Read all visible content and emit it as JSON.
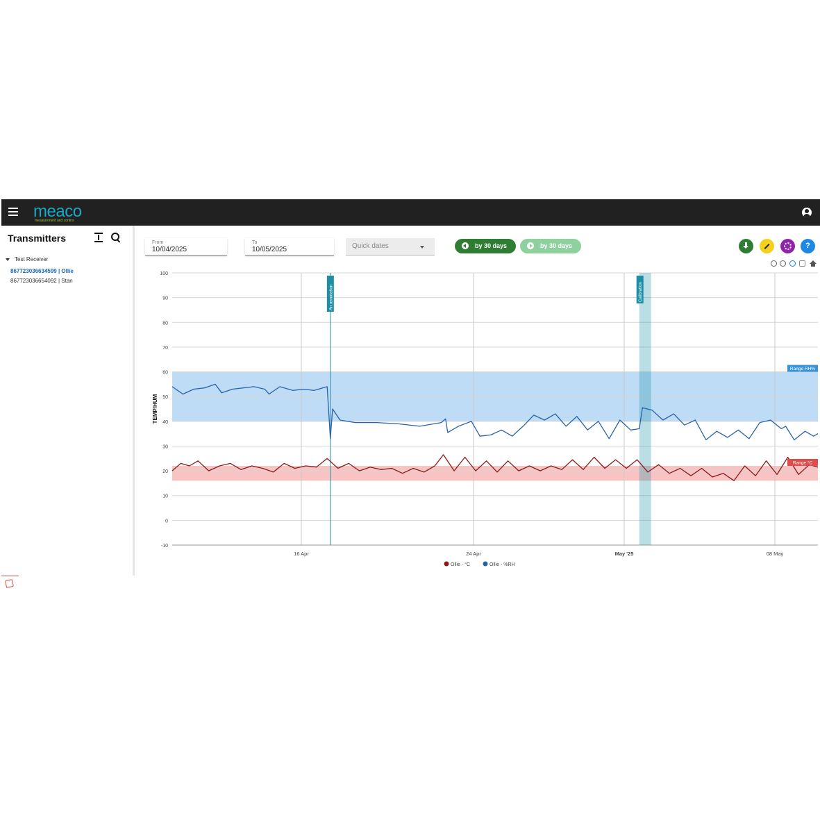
{
  "app": {
    "brand": "meaco",
    "tagline": "measurement and control"
  },
  "icons": {
    "menu": "menu-icon",
    "account": "account-circle-icon",
    "expand": "expand-vertical-icon",
    "search": "search-icon",
    "download": "download-icon",
    "fullscreen": "fullscreen-icon",
    "settings": "gear-icon",
    "help": "help-icon"
  },
  "sidebar": {
    "title": "Transmitters",
    "receiver": "Test Receiver",
    "items": [
      {
        "label": "867723036634599 | Ollie",
        "active": true
      },
      {
        "label": "867723036654092 | Stan",
        "active": false
      }
    ]
  },
  "toolbar": {
    "from_label": "From",
    "from_value": "10/04/2025",
    "to_label": "To",
    "to_value": "10/05/2025",
    "quick_dates_placeholder": "Quick dates",
    "prev_label": "by 30 days",
    "next_label": "by 30 days",
    "help_label": "?"
  },
  "colors": {
    "temp": "#8b1a1a",
    "rh": "#2a62a8",
    "rh_band": "#b3d6f5",
    "temp_band": "#f7b8b8",
    "annotation": "#1e8ea6"
  },
  "chart_data": {
    "type": "line",
    "ylabel": "TEMP/HUM",
    "ylim": [
      -10,
      100
    ],
    "yticks": [
      100,
      90,
      80,
      70,
      60,
      50,
      40,
      30,
      20,
      10,
      0,
      -10
    ],
    "xlim": [
      "2025-04-10",
      "2025-05-10"
    ],
    "xticks": [
      {
        "date": "2025-04-16",
        "label": "16 Apr",
        "bold": false
      },
      {
        "date": "2025-04-24",
        "label": "24 Apr",
        "bold": false
      },
      {
        "date": "2025-05-01",
        "label": "May '25",
        "bold": true
      },
      {
        "date": "2025-05-08",
        "label": "08 May",
        "bold": false
      }
    ],
    "bands": [
      {
        "label": "Range RH%",
        "from": 40,
        "to": 60
      },
      {
        "label": "Range °C",
        "from": 16,
        "to": 22
      }
    ],
    "annotations": [
      {
        "label": "An annotation",
        "date": "2025-04-17.35"
      },
      {
        "label": "Calibration",
        "from": "2025-05-01.7",
        "to": "2025-05-02.25"
      }
    ],
    "legend": [
      "Ollie - °C",
      "Ollie - %RH"
    ],
    "series": [
      {
        "name": "Ollie - %RH",
        "points": [
          [
            "2025-04-10",
            54
          ],
          [
            "2025-04-10.5",
            51
          ],
          [
            "2025-04-11",
            53
          ],
          [
            "2025-04-11.5",
            53.5
          ],
          [
            "2025-04-12",
            55
          ],
          [
            "2025-04-12.3",
            51.5
          ],
          [
            "2025-04-12.8",
            53
          ],
          [
            "2025-04-13.3",
            53.5
          ],
          [
            "2025-04-13.8",
            54
          ],
          [
            "2025-04-14.3",
            53
          ],
          [
            "2025-04-14.5",
            51
          ],
          [
            "2025-04-15",
            54
          ],
          [
            "2025-04-15.6",
            52.5
          ],
          [
            "2025-04-16.1",
            53
          ],
          [
            "2025-04-16.6",
            52.5
          ],
          [
            "2025-04-17.2",
            54
          ],
          [
            "2025-04-17.35",
            33
          ],
          [
            "2025-04-17.45",
            45
          ],
          [
            "2025-04-17.8",
            40.5
          ],
          [
            "2025-04-18.5",
            39.5
          ],
          [
            "2025-04-19.5",
            39.5
          ],
          [
            "2025-04-20.5",
            39
          ],
          [
            "2025-04-21.5",
            38
          ],
          [
            "2025-04-22.5",
            39.5
          ],
          [
            "2025-04-22.7",
            41
          ],
          [
            "2025-04-22.8",
            35.5
          ],
          [
            "2025-04-23.3",
            38
          ],
          [
            "2025-04-23.9",
            40
          ],
          [
            "2025-04-24.3",
            34
          ],
          [
            "2025-04-24.8",
            34.5
          ],
          [
            "2025-04-25.3",
            36.5
          ],
          [
            "2025-04-25.8",
            34
          ],
          [
            "2025-04-26.3",
            38
          ],
          [
            "2025-04-26.8",
            42.5
          ],
          [
            "2025-04-27.3",
            40.5
          ],
          [
            "2025-04-27.8",
            43
          ],
          [
            "2025-04-28.3",
            38
          ],
          [
            "2025-04-28.8",
            42
          ],
          [
            "2025-04-29.3",
            36.5
          ],
          [
            "2025-04-29.8",
            40
          ],
          [
            "2025-04-30.3",
            33
          ],
          [
            "2025-04-30.8",
            40.5
          ],
          [
            "2025-05-01.3",
            36.5
          ],
          [
            "2025-05-01.7",
            37
          ],
          [
            "2025-05-01.85",
            45.5
          ],
          [
            "2025-05-02.3",
            44.5
          ],
          [
            "2025-05-02.8",
            40.5
          ],
          [
            "2025-05-03.3",
            43
          ],
          [
            "2025-05-03.8",
            38.5
          ],
          [
            "2025-05-04.3",
            40.5
          ],
          [
            "2025-05-04.8",
            32.5
          ],
          [
            "2025-05-05.3",
            36
          ],
          [
            "2025-05-05.8",
            33.5
          ],
          [
            "2025-05-06.3",
            36.5
          ],
          [
            "2025-05-06.8",
            33
          ],
          [
            "2025-05-07.3",
            39.5
          ],
          [
            "2025-05-07.8",
            40.5
          ],
          [
            "2025-05-08.3",
            37
          ],
          [
            "2025-05-08.5",
            38
          ],
          [
            "2025-05-08.9",
            32.5
          ],
          [
            "2025-05-09.4",
            36
          ],
          [
            "2025-05-09.8",
            34
          ],
          [
            "2025-05-10",
            35
          ]
        ]
      },
      {
        "name": "Ollie - °C",
        "points": [
          [
            "2025-04-10",
            20
          ],
          [
            "2025-04-10.4",
            23
          ],
          [
            "2025-04-10.8",
            22
          ],
          [
            "2025-04-11.2",
            24
          ],
          [
            "2025-04-11.7",
            20
          ],
          [
            "2025-04-12.2",
            22
          ],
          [
            "2025-04-12.7",
            23
          ],
          [
            "2025-04-13.2",
            20.5
          ],
          [
            "2025-04-13.7",
            22
          ],
          [
            "2025-04-14.2",
            21
          ],
          [
            "2025-04-14.7",
            19.5
          ],
          [
            "2025-04-15.2",
            23
          ],
          [
            "2025-04-15.7",
            21
          ],
          [
            "2025-04-16.2",
            22
          ],
          [
            "2025-04-16.7",
            21.5
          ],
          [
            "2025-04-17.2",
            25
          ],
          [
            "2025-04-17.7",
            21
          ],
          [
            "2025-04-18.2",
            23
          ],
          [
            "2025-04-18.7",
            20
          ],
          [
            "2025-04-19.2",
            21.5
          ],
          [
            "2025-04-19.7",
            20.5
          ],
          [
            "2025-04-20.2",
            21
          ],
          [
            "2025-04-20.7",
            19
          ],
          [
            "2025-04-21.2",
            21
          ],
          [
            "2025-04-21.7",
            19.5
          ],
          [
            "2025-04-22.2",
            22
          ],
          [
            "2025-04-22.6",
            26.5
          ],
          [
            "2025-04-23.1",
            20
          ],
          [
            "2025-04-23.6",
            25.5
          ],
          [
            "2025-04-24.1",
            20
          ],
          [
            "2025-04-24.6",
            24
          ],
          [
            "2025-04-25.1",
            19.5
          ],
          [
            "2025-04-25.6",
            24
          ],
          [
            "2025-04-26.1",
            20
          ],
          [
            "2025-04-26.6",
            22
          ],
          [
            "2025-04-27.1",
            20
          ],
          [
            "2025-04-27.6",
            22
          ],
          [
            "2025-04-28.1",
            20.5
          ],
          [
            "2025-04-28.6",
            24.5
          ],
          [
            "2025-04-29.1",
            20.5
          ],
          [
            "2025-04-29.6",
            25.5
          ],
          [
            "2025-04-30.1",
            21
          ],
          [
            "2025-04-30.6",
            24.5
          ],
          [
            "2025-05-01.1",
            21
          ],
          [
            "2025-05-01.6",
            24.5
          ],
          [
            "2025-05-02.1",
            19.5
          ],
          [
            "2025-05-02.6",
            22.5
          ],
          [
            "2025-05-03.1",
            19
          ],
          [
            "2025-05-03.6",
            21
          ],
          [
            "2025-05-04.1",
            18
          ],
          [
            "2025-05-04.6",
            21
          ],
          [
            "2025-05-05.1",
            17.5
          ],
          [
            "2025-05-05.6",
            19
          ],
          [
            "2025-05-06.1",
            16
          ],
          [
            "2025-05-06.6",
            22
          ],
          [
            "2025-05-07.1",
            18
          ],
          [
            "2025-05-07.6",
            24
          ],
          [
            "2025-05-08.1",
            18.5
          ],
          [
            "2025-05-08.6",
            25.5
          ],
          [
            "2025-05-09.1",
            18.5
          ],
          [
            "2025-05-09.6",
            22.5
          ],
          [
            "2025-05-10",
            21.5
          ]
        ]
      }
    ]
  }
}
